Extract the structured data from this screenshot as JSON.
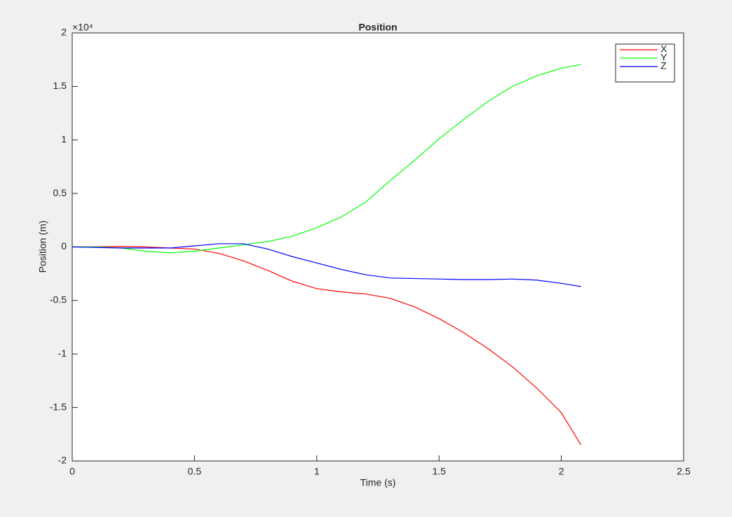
{
  "chart_data": {
    "type": "line",
    "title": "Position",
    "xlabel": "Time (s)",
    "ylabel": "Position (m)",
    "y_exponent_label": "×10⁴",
    "x": [
      0,
      0.1,
      0.2,
      0.3,
      0.4,
      0.5,
      0.6,
      0.7,
      0.8,
      0.9,
      1.0,
      1.1,
      1.2,
      1.3,
      1.4,
      1.5,
      1.6,
      1.7,
      1.8,
      1.9,
      2.0,
      2.08
    ],
    "series": [
      {
        "name": "X",
        "color": "#ff0000",
        "values": [
          0,
          20,
          40,
          0,
          -100,
          -200,
          -600,
          -1300,
          -2200,
          -3200,
          -3900,
          -4200,
          -4400,
          -4800,
          -5600,
          -6700,
          -8000,
          -9500,
          -11200,
          -13200,
          -15500,
          -18500
        ]
      },
      {
        "name": "Y",
        "color": "#00ff00",
        "values": [
          0,
          0,
          -100,
          -400,
          -550,
          -400,
          -100,
          200,
          500,
          1000,
          1800,
          2800,
          4200,
          6200,
          8100,
          10100,
          11900,
          13600,
          15000,
          16000,
          16700,
          17050
        ]
      },
      {
        "name": "Z",
        "color": "#0000ff",
        "values": [
          0,
          -50,
          -100,
          -100,
          -100,
          100,
          300,
          300,
          -200,
          -900,
          -1500,
          -2100,
          -2600,
          -2900,
          -2950,
          -3000,
          -3050,
          -3050,
          -3000,
          -3100,
          -3400,
          -3700
        ]
      }
    ],
    "xlim": [
      0,
      2.5
    ],
    "xticks": [
      0,
      0.5,
      1,
      1.5,
      2,
      2.5
    ],
    "ylim": [
      -20000,
      20000
    ],
    "yticks": [
      {
        "value": -20000,
        "label": "-2"
      },
      {
        "value": -15000,
        "label": "-1.5"
      },
      {
        "value": -10000,
        "label": "-1"
      },
      {
        "value": -5000,
        "label": "-0.5"
      },
      {
        "value": 0,
        "label": "0"
      },
      {
        "value": 5000,
        "label": "0.5"
      },
      {
        "value": 10000,
        "label": "1"
      },
      {
        "value": 15000,
        "label": "1.5"
      },
      {
        "value": 20000,
        "label": "2"
      }
    ],
    "legend": "top-right",
    "grid": false
  }
}
